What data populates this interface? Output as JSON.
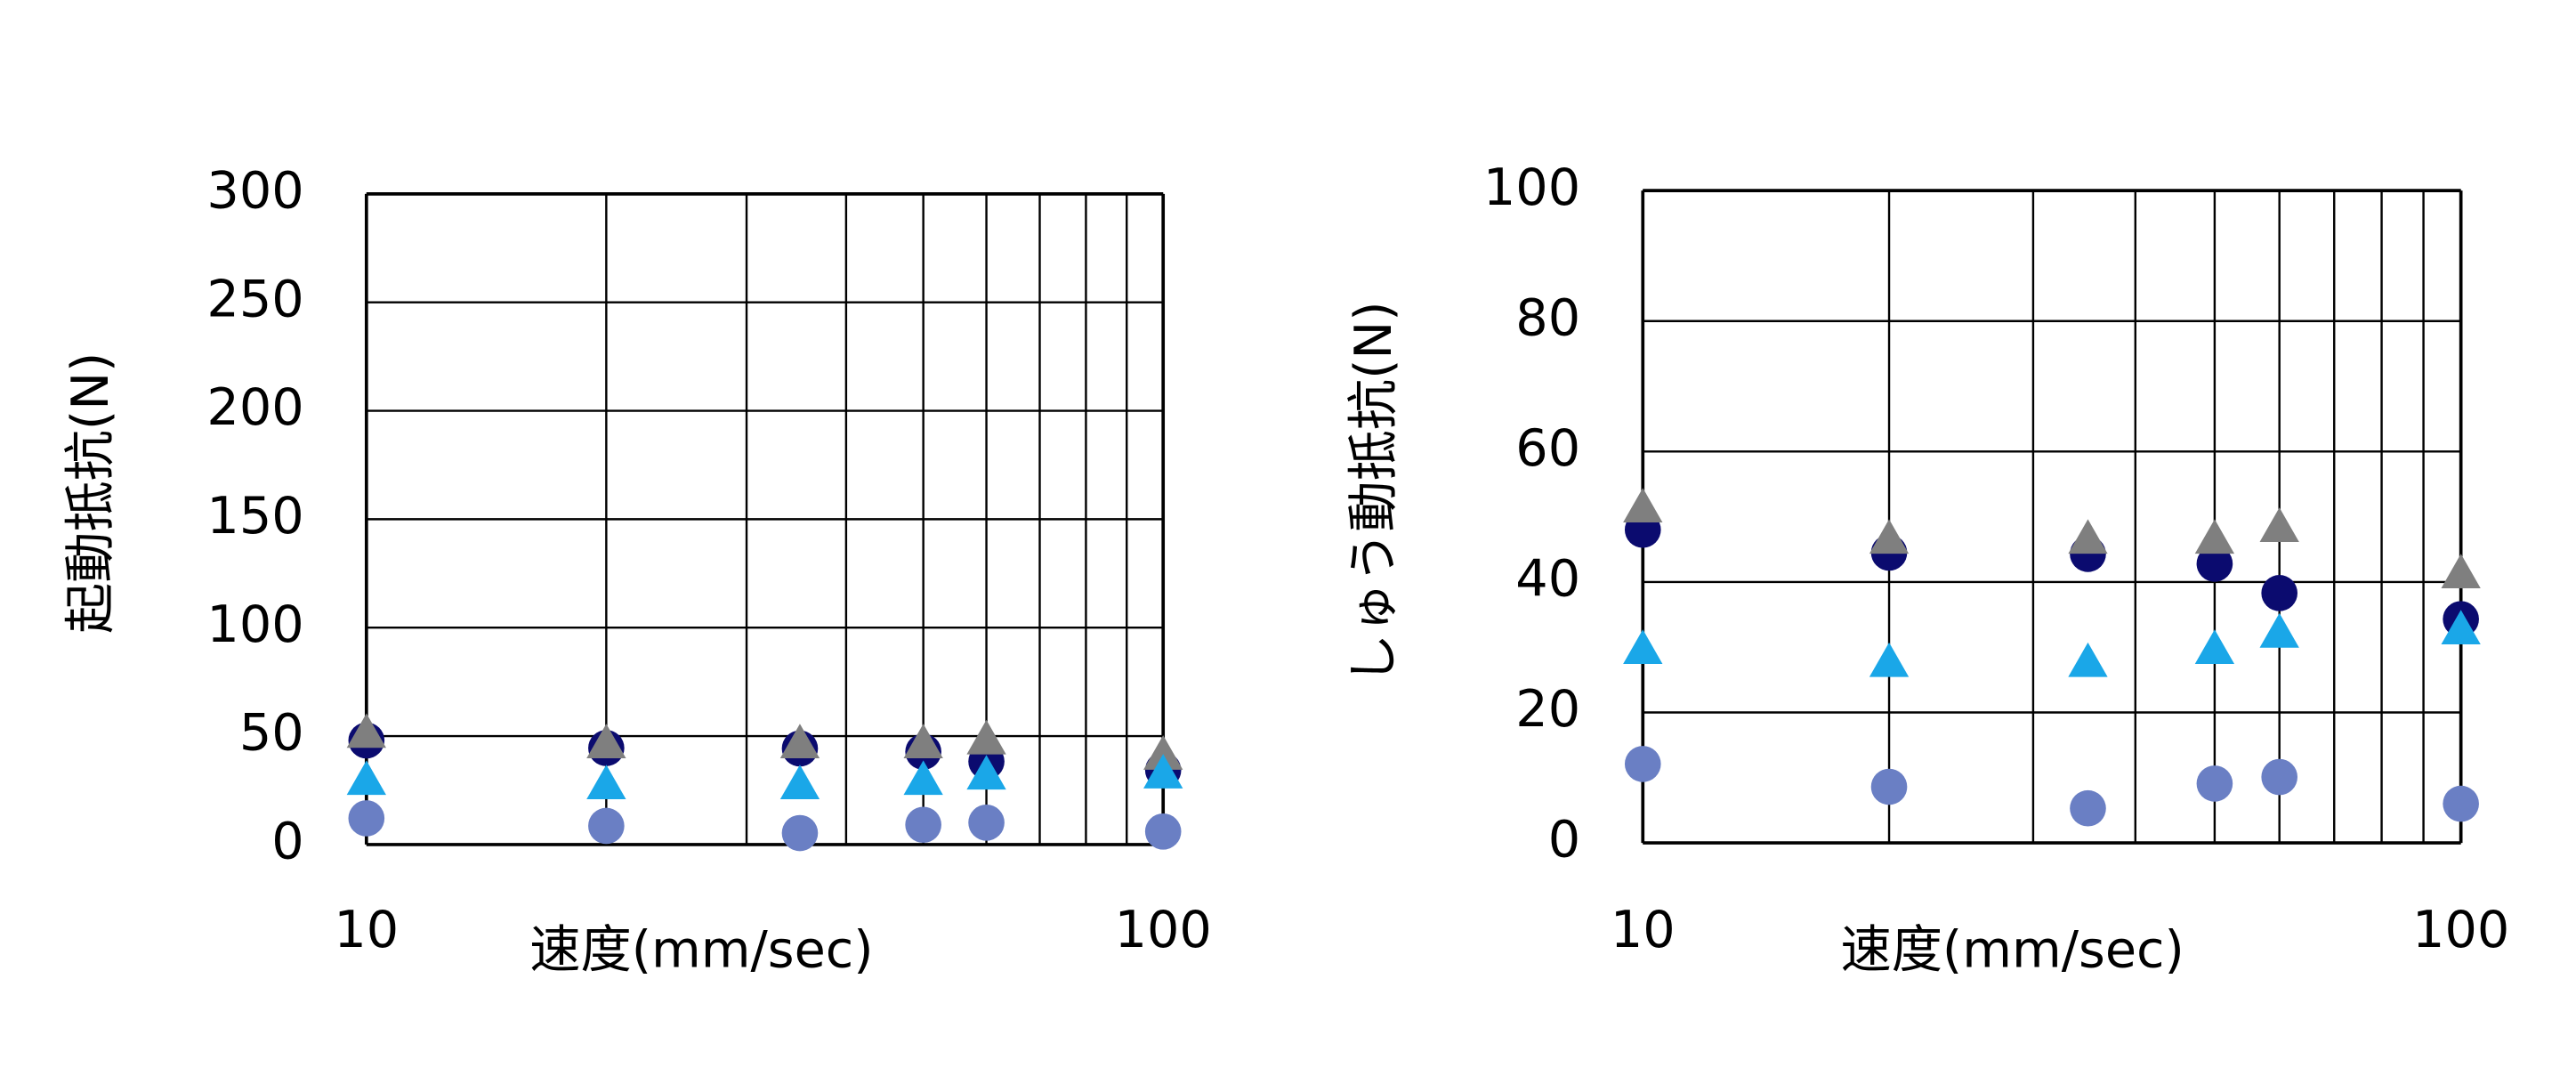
{
  "chart_data": [
    {
      "type": "scatter",
      "y_label": "起動抵抗(N)",
      "x_label": "速度(mm/sec)",
      "x_scale": "log",
      "xlim": [
        10,
        100
      ],
      "xticks": [
        10,
        100
      ],
      "x_minor_ticks": [
        20,
        30,
        40,
        50,
        60,
        70,
        80,
        90
      ],
      "ylim": [
        0,
        300
      ],
      "yticks": [
        0,
        50,
        100,
        150,
        200,
        250,
        300
      ],
      "grid": true,
      "x": [
        10,
        20,
        35,
        50,
        60,
        100
      ],
      "series": [
        {
          "color": "#0b0b6f",
          "marker": "circle",
          "values": [
            48,
            44.5,
            44.3,
            42.8,
            38.3,
            34.3
          ]
        },
        {
          "color": "#7f7f7f",
          "marker": "triangle",
          "values": [
            51.4,
            46.6,
            46.6,
            46.6,
            48.4,
            41.3
          ]
        },
        {
          "color": "#1aa7e8",
          "marker": "triangle",
          "values": [
            29.7,
            27.7,
            27.7,
            29.7,
            32.2,
            32.7
          ]
        },
        {
          "color": "#6a7fc4",
          "marker": "circle",
          "values": [
            12.1,
            8.6,
            5.3,
            9.1,
            10.1,
            6.0
          ]
        }
      ]
    },
    {
      "type": "scatter",
      "y_label": "しゅう動抵抗(N)",
      "x_label": "速度(mm/sec)",
      "x_scale": "log",
      "xlim": [
        10,
        100
      ],
      "xticks": [
        10,
        100
      ],
      "x_minor_ticks": [
        20,
        30,
        40,
        50,
        60,
        70,
        80,
        90
      ],
      "ylim": [
        0,
        100
      ],
      "yticks": [
        0,
        20,
        40,
        60,
        80,
        100
      ],
      "grid": true,
      "x": [
        10,
        20,
        35,
        50,
        60,
        100
      ],
      "series": [
        {
          "color": "#0b0b6f",
          "marker": "circle",
          "values": [
            48,
            44.5,
            44.3,
            42.8,
            38.3,
            34.3
          ]
        },
        {
          "color": "#7f7f7f",
          "marker": "triangle",
          "values": [
            51.4,
            46.6,
            46.6,
            46.6,
            48.4,
            41.3
          ]
        },
        {
          "color": "#1aa7e8",
          "marker": "triangle",
          "values": [
            29.7,
            27.7,
            27.7,
            29.7,
            32.2,
            32.7
          ]
        },
        {
          "color": "#6a7fc4",
          "marker": "circle",
          "values": [
            12.1,
            8.6,
            5.3,
            9.1,
            10.1,
            6.0
          ]
        }
      ]
    }
  ]
}
